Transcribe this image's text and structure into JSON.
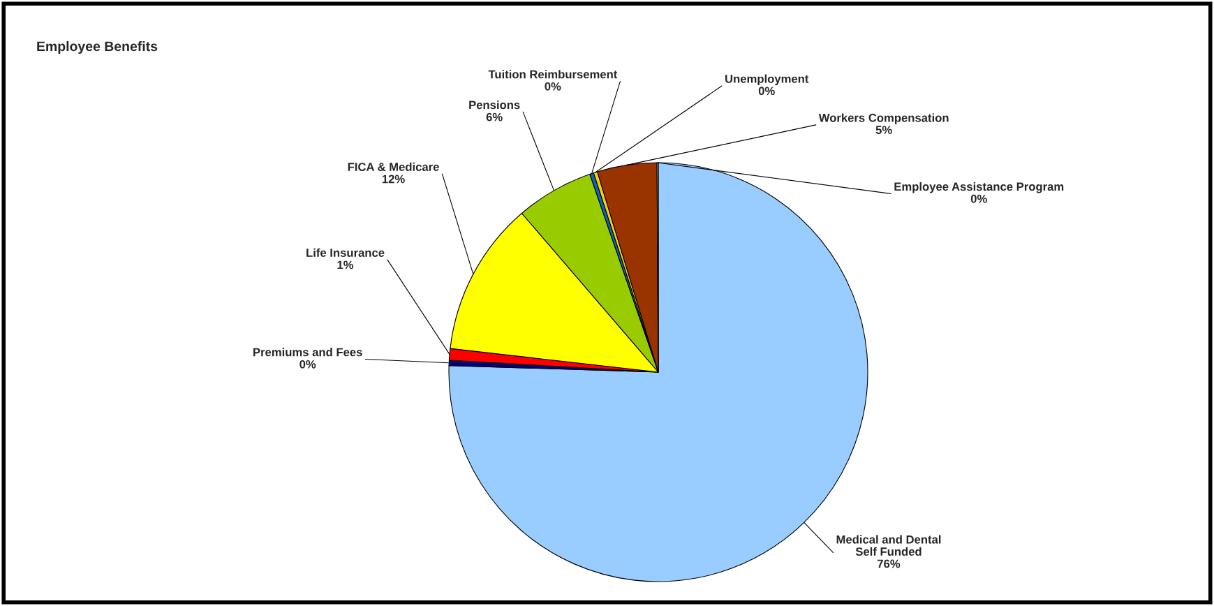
{
  "chart_data": {
    "type": "pie",
    "title": "Employee Benefits",
    "categories": [
      "Medical and Dental\nSelf Funded",
      "Premiums and Fees",
      "Life Insurance",
      "FICA & Medicare",
      "Pensions",
      "Tuition Reimbursement",
      "Unemployment",
      "Workers Compensation",
      "Employee Assistance Program"
    ],
    "values": [
      75.5,
      0.4,
      0.9,
      11.9,
      6.0,
      0.3,
      0.3,
      4.6,
      0.1
    ],
    "value_labels": [
      "76%",
      "0%",
      "1%",
      "12%",
      "6%",
      "0%",
      "0%",
      "5%",
      "0%"
    ],
    "colors": [
      "#99ccff",
      "#000080",
      "#ff0000",
      "#ffff00",
      "#99cc00",
      "#0066cc",
      "#ffcc00",
      "#993300",
      "#ffffcc"
    ],
    "legend": false
  }
}
